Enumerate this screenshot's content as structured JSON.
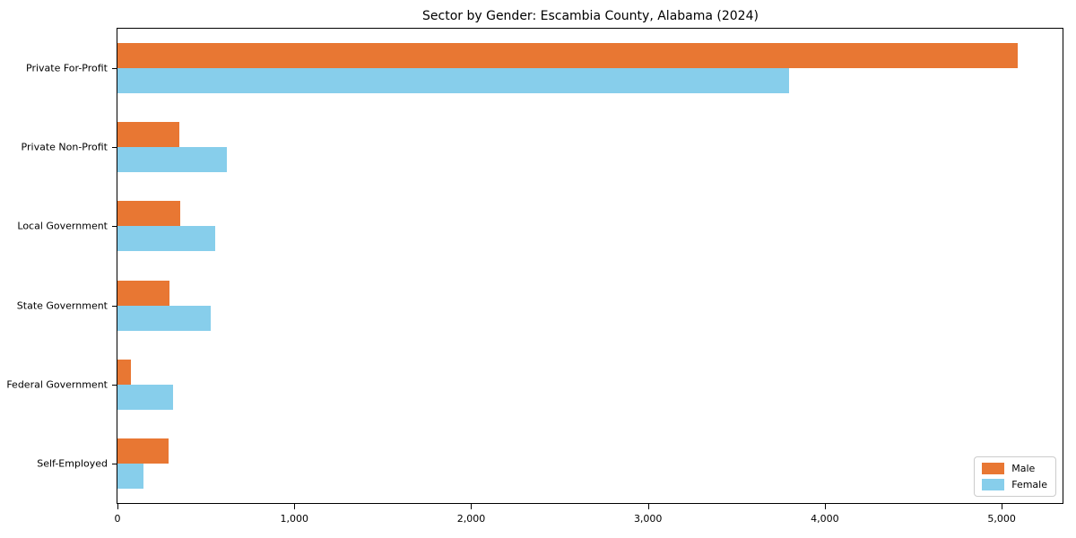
{
  "chart_data": {
    "type": "bar",
    "orientation": "horizontal",
    "title": "Sector by Gender: Escambia County, Alabama (2024)",
    "categories": [
      "Private For-Profit",
      "Private Non-Profit",
      "Local Government",
      "State Government",
      "Federal Government",
      "Self-Employed"
    ],
    "series": [
      {
        "name": "Male",
        "color": "#e87733",
        "values": [
          5090,
          350,
          355,
          295,
          75,
          290
        ]
      },
      {
        "name": "Female",
        "color": "#87ceeb",
        "values": [
          3800,
          620,
          555,
          525,
          315,
          145
        ]
      }
    ],
    "xlabel": "",
    "ylabel": "",
    "xlim": [
      0,
      5344
    ],
    "xticks": [
      0,
      1000,
      2000,
      3000,
      4000,
      5000
    ],
    "xtick_labels": [
      "0",
      "1,000",
      "2,000",
      "3,000",
      "4,000",
      "5,000"
    ],
    "grid": false,
    "legend_position": "lower right",
    "colors": {
      "male": "#e87733",
      "female": "#87ceeb",
      "spine": "#000000",
      "background": "#ffffff"
    }
  }
}
